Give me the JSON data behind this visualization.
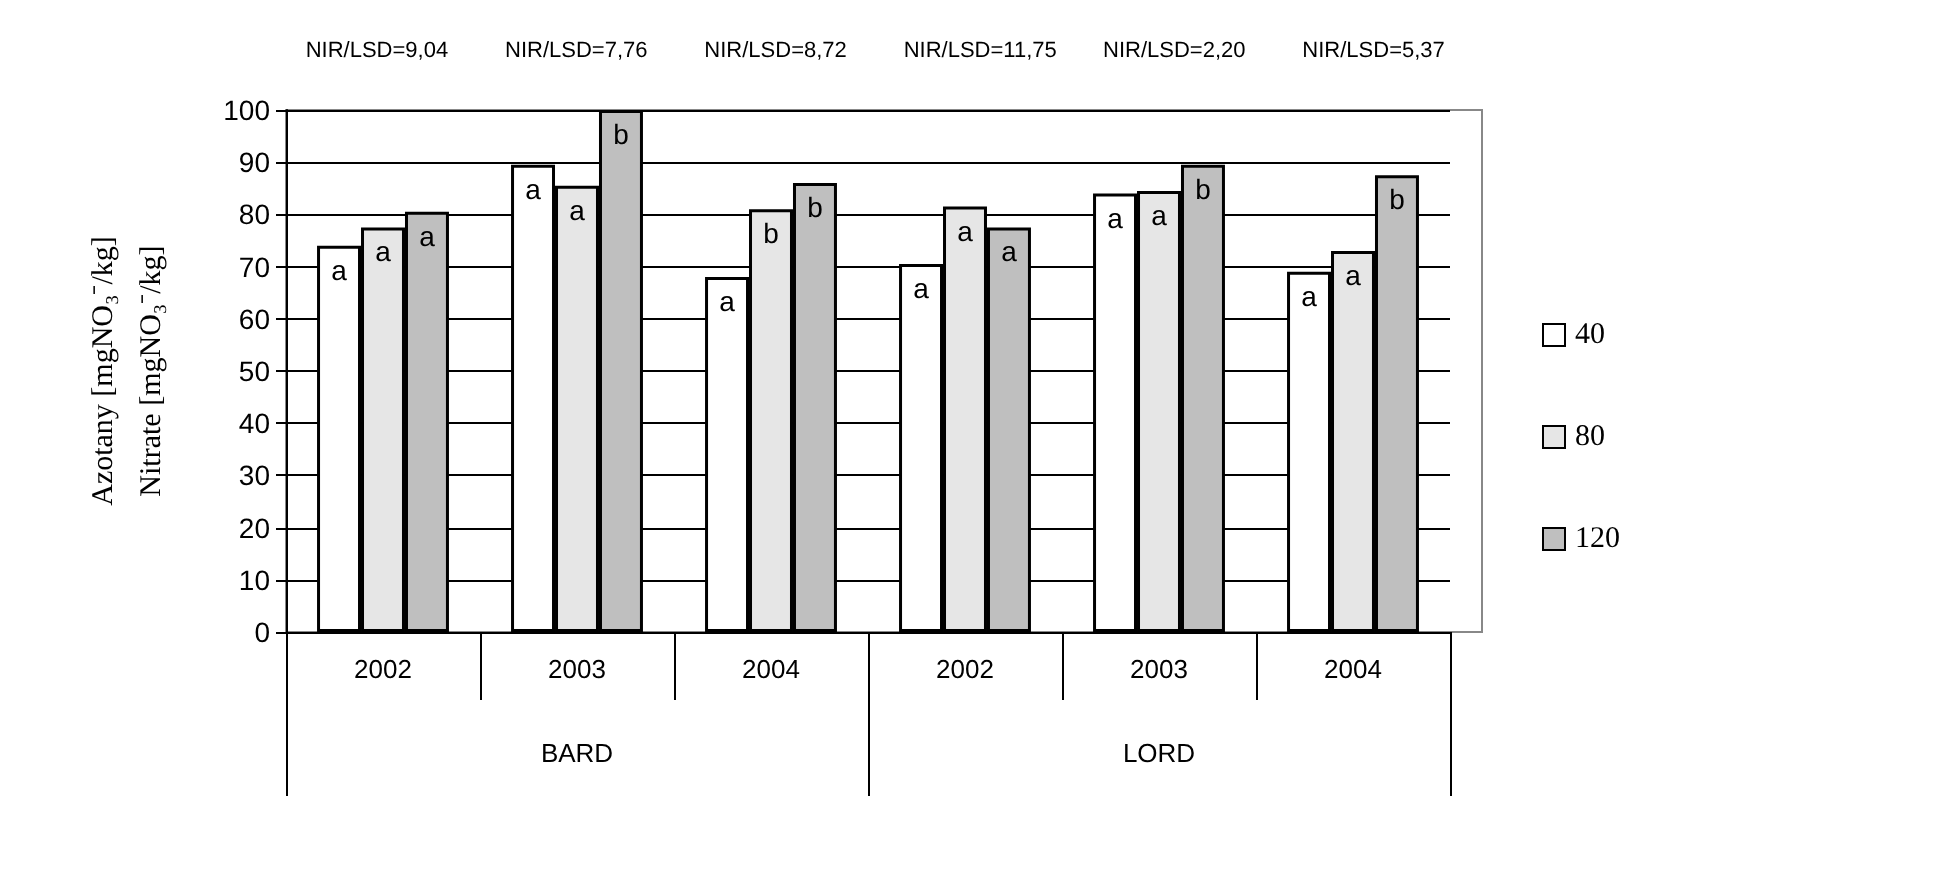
{
  "chart_data": {
    "type": "bar",
    "ylabel": "Azotany [mgNO₃⁻/kg]\nNitrate [mgNO₃⁻/kg]",
    "categories": [
      "2002",
      "2003",
      "2004",
      "2002",
      "2003",
      "2004"
    ],
    "series": [
      {
        "name": "40",
        "color": "#ffffff",
        "values": [
          74,
          89.5,
          68,
          70.5,
          84,
          69
        ],
        "value_labels": [
          "a",
          "a",
          "a",
          "a",
          "a",
          "a"
        ]
      },
      {
        "name": "80",
        "color": "#e6e6e6",
        "values": [
          77.5,
          85.5,
          81,
          81.5,
          84.5,
          73
        ],
        "value_labels": [
          "a",
          "a",
          "b",
          "a",
          "a",
          "a"
        ]
      },
      {
        "name": "120",
        "color": "#bfbfbf",
        "values": [
          80.5,
          100,
          86,
          77.5,
          89.5,
          87.5
        ],
        "value_labels": [
          "a",
          "b",
          "b",
          "a",
          "b",
          "b"
        ]
      }
    ],
    "annotations": [
      "NIR/LSD=9,04",
      "NIR/LSD=7,76",
      "NIR/LSD=8,72",
      "NIR/LSD=11,75",
      "NIR/LSD=2,20",
      "NIR/LSD=5,37",
      "BARD",
      "LORD"
    ],
    "ylim": [
      0,
      100
    ],
    "yticks": [
      0,
      10,
      20,
      30,
      40,
      50,
      60,
      70,
      80,
      90,
      100
    ],
    "grid": "y",
    "legend": "right"
  }
}
